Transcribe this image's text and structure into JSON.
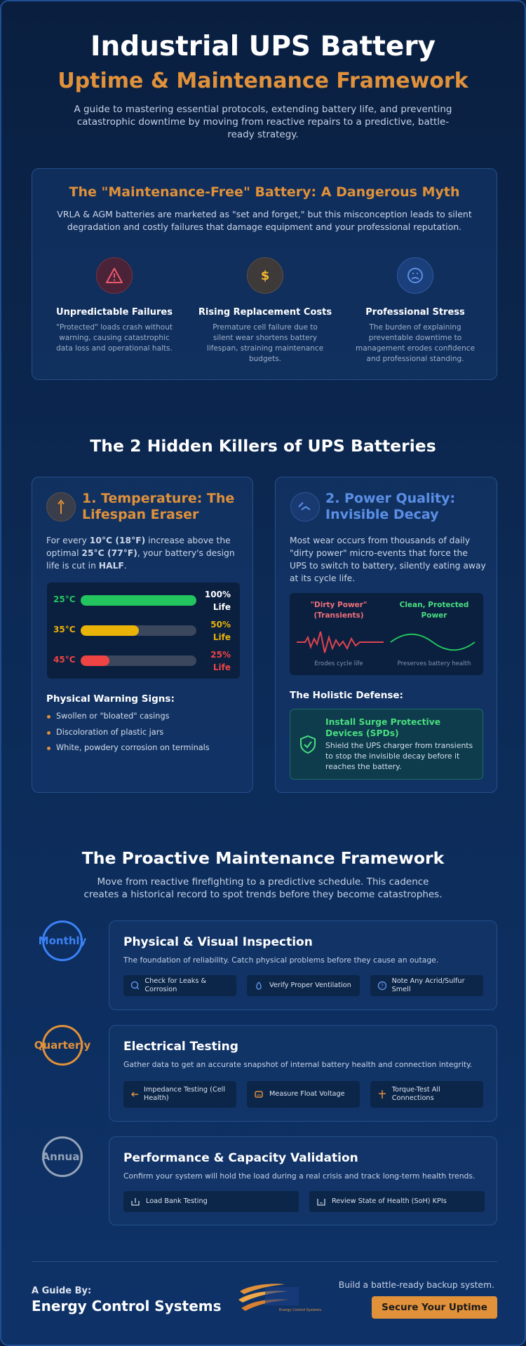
{
  "header": {
    "title": "Industrial UPS Battery",
    "subtitle": "Uptime & Maintenance Framework",
    "intro": "A guide to mastering essential protocols, extending battery life, and preventing catastrophic downtime by moving from reactive repairs to a predictive, battle-ready strategy."
  },
  "myth": {
    "title": "The \"Maintenance-Free\" Battery: A Dangerous Myth",
    "text": "VRLA & AGM batteries are marketed as \"set and forget,\" but this misconception leads to silent degradation and costly failures that damage equipment and your professional reputation.",
    "items": [
      {
        "title": "Unpredictable Failures",
        "text": "\"Protected\" loads crash without warning, causing catastrophic data loss and operational halts."
      },
      {
        "title": "Rising Replacement Costs",
        "text": "Premature cell failure due to silent wear shortens battery lifespan, straining maintenance budgets."
      },
      {
        "title": "Professional Stress",
        "text": "The burden of explaining preventable downtime to management erodes confidence and professional standing."
      }
    ]
  },
  "killers": {
    "title": "The 2 Hidden Killers of UPS Batteries",
    "temperature": {
      "title": "1. Temperature: The Lifespan Eraser",
      "text_parts": [
        "For every ",
        "10°C (18°F)",
        " increase above the optimal ",
        "25°C (77°F)",
        ", your battery's design life is cut in ",
        "HALF",
        "."
      ],
      "life_bars": [
        {
          "label": "25°C",
          "value": 100,
          "value_label": "100% Life",
          "color": "#22c55e"
        },
        {
          "label": "35°C",
          "value": 50,
          "value_label": "50% Life",
          "color": "#eab308"
        },
        {
          "label": "45°C",
          "value": 25,
          "value_label": "25% Life",
          "color": "#ef4444"
        }
      ],
      "signs_title": "Physical Warning Signs:",
      "signs": [
        "Swollen or \"bloated\" casings",
        "Discoloration of plastic jars",
        "White, powdery corrosion on terminals"
      ]
    },
    "power": {
      "title": "2. Power Quality: Invisible Decay",
      "text": "Most wear occurs from thousands of daily \"dirty power\" micro-events that force the UPS to switch to battery, silently eating away at its cycle life.",
      "dirty_label": "\"Dirty Power\" (Transients)",
      "dirty_caption": "Erodes cycle life",
      "clean_label": "Clean, Protected Power",
      "clean_caption": "Preserves battery health",
      "defense_title": "The Holistic Defense:",
      "callout_title": "Install Surge Protective Devices (SPDs)",
      "callout_text": "Shield the UPS charger from transients to stop the invisible decay before it reaches the battery."
    }
  },
  "framework": {
    "title": "The Proactive Maintenance Framework",
    "text": "Move from reactive firefighting to a predictive schedule. This cadence creates a historical record to spot trends before they become catastrophes.",
    "rows": [
      {
        "cadence": "Monthly",
        "title": "Physical & Visual Inspection",
        "text": "The foundation of reliability. Catch physical problems before they cause an outage.",
        "tasks": [
          "Check for Leaks & Corrosion",
          "Verify Proper Ventilation",
          "Note Any Acrid/Sulfur Smell"
        ]
      },
      {
        "cadence": "Quarterly",
        "title": "Electrical Testing",
        "text": "Gather data to get an accurate snapshot of internal battery health and connection integrity.",
        "tasks": [
          "Impedance Testing (Cell Health)",
          "Measure Float Voltage",
          "Torque-Test All Connections"
        ]
      },
      {
        "cadence": "Annual",
        "title": "Performance & Capacity Validation",
        "text": "Confirm your system will hold the load during a real crisis and track long-term health trends.",
        "tasks": [
          "Load Bank Testing",
          "Review State of Health (SoH) KPIs"
        ]
      }
    ]
  },
  "footer": {
    "guide_label": "A Guide By:",
    "company": "Energy Control Systems",
    "logo_text": "Energy Control Systems",
    "tagline": "Build a battle-ready backup system.",
    "button": "Secure Your Uptime"
  }
}
